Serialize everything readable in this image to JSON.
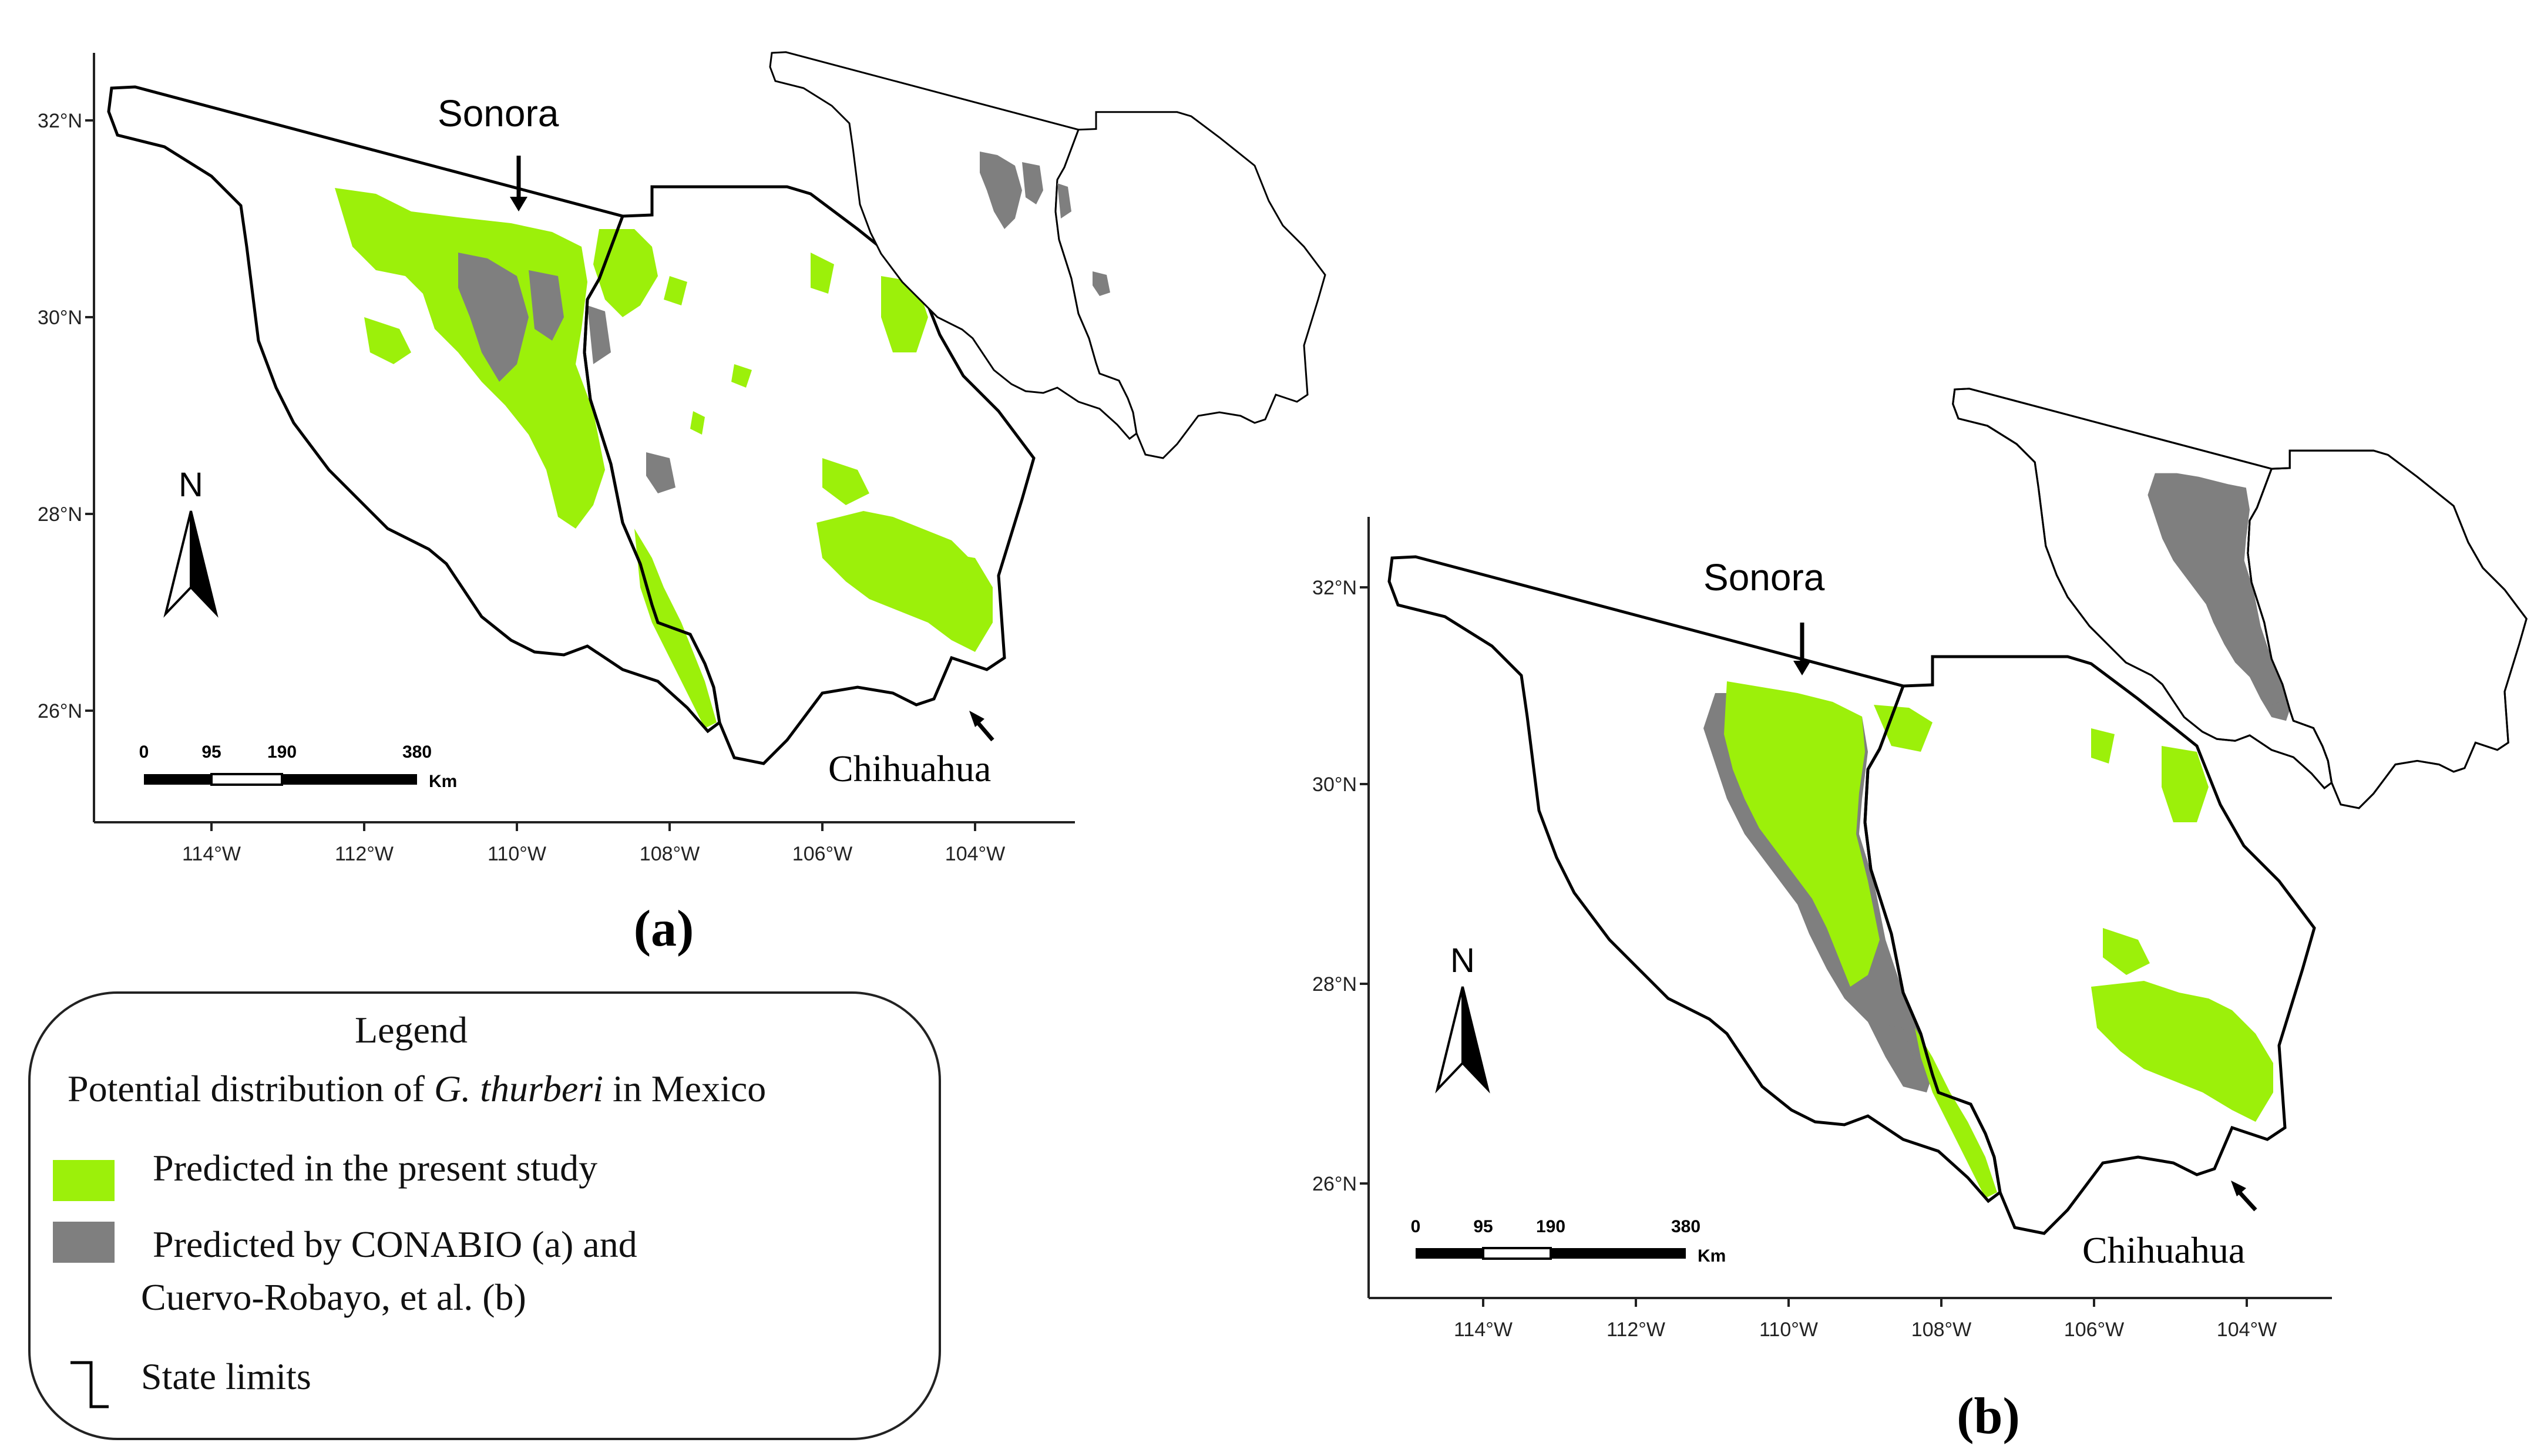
{
  "colors": {
    "predicted_present": "#9cf00a",
    "predicted_other": "#7f7f7f",
    "state_limits": "#000000",
    "background": "#ffffff"
  },
  "map_a": {
    "panel_label": "(a)",
    "state_sonora": "Sonora",
    "state_chihuahua": "Chihuahua",
    "lat_ticks": [
      "32°N",
      "30°N",
      "28°N",
      "26°N"
    ],
    "lon_ticks": [
      "114°W",
      "112°W",
      "110°W",
      "108°W",
      "106°W",
      "104°W"
    ],
    "north_label": "N",
    "scale": {
      "labels": [
        "0",
        "95",
        "190",
        "380"
      ],
      "unit": "Km"
    }
  },
  "map_b": {
    "panel_label": "(b)",
    "state_sonora": "Sonora",
    "state_chihuahua": "Chihuahua",
    "lat_ticks": [
      "32°N",
      "30°N",
      "28°N",
      "26°N"
    ],
    "lon_ticks": [
      "114°W",
      "112°W",
      "110°W",
      "108°W",
      "106°W",
      "104°W"
    ],
    "north_label": "N",
    "scale": {
      "labels": [
        "0",
        "95",
        "190",
        "380"
      ],
      "unit": "Km"
    }
  },
  "legend": {
    "title": "Legend",
    "subtitle_prefix": "Potential distribution of ",
    "species": "G. thurberi",
    "subtitle_suffix": " in Mexico",
    "items": [
      {
        "label": "Predicted in the present study"
      },
      {
        "label_line1": "Predicted by CONABIO (a) and",
        "label_line2": "Cuervo-Robayo, et al. (b)"
      },
      {
        "label": "State limits"
      }
    ]
  }
}
